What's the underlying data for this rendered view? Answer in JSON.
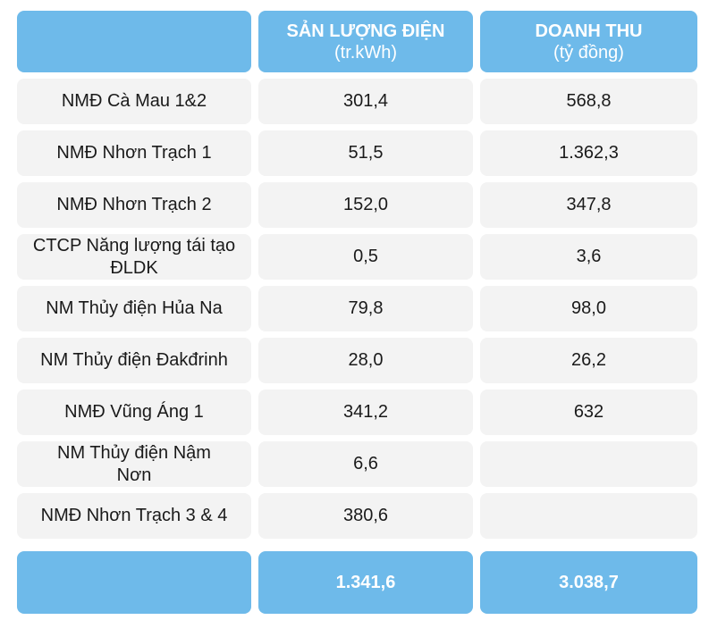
{
  "header": {
    "col1_title": "SẢN LƯỢNG ĐIỆN",
    "col1_unit": "(tr.kWh)",
    "col2_title": "DOANH THU",
    "col2_unit": "(tỷ đồng)"
  },
  "rows": [
    {
      "name": "NMĐ Cà Mau 1&2",
      "output": "301,4",
      "revenue": "568,8"
    },
    {
      "name": "NMĐ Nhơn Trạch 1",
      "output": "51,5",
      "revenue": "1.362,3"
    },
    {
      "name": "NMĐ Nhơn Trạch 2",
      "output": "152,0",
      "revenue": "347,8"
    },
    {
      "name": "CTCP Năng lượng tái tạo ĐLDK",
      "output": "0,5",
      "revenue": "3,6"
    },
    {
      "name": "NM Thủy điện Hủa Na",
      "output": "79,8",
      "revenue": "98,0"
    },
    {
      "name": "NM Thủy điện Đakđrinh",
      "output": "28,0",
      "revenue": "26,2"
    },
    {
      "name": "NMĐ Vũng Áng 1",
      "output": "341,2",
      "revenue": "632"
    },
    {
      "name": "NM Thủy điện Nậm Nơn",
      "output": "6,6",
      "revenue": ""
    },
    {
      "name": "NMĐ Nhơn Trạch 3 & 4",
      "output": "380,6",
      "revenue": ""
    }
  ],
  "total": {
    "output": "1.341,6",
    "revenue": "3.038,7"
  },
  "colors": {
    "header_bg": "#6ebaea",
    "row_bg": "#f3f3f3"
  }
}
